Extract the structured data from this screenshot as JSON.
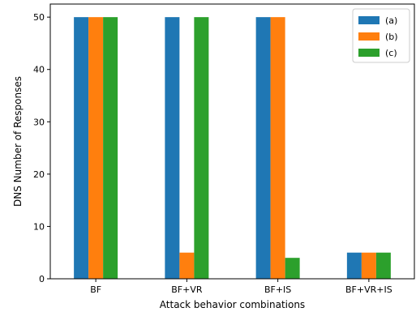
{
  "chart_data": {
    "type": "bar",
    "title": "",
    "xlabel": "Attack behavior combinations",
    "ylabel": "DNS Number of Responses",
    "categories": [
      "BF",
      "BF+VR",
      "BF+IS",
      "BF+VR+IS"
    ],
    "series": [
      {
        "name": "(a)",
        "color": "#1f77b4",
        "values": [
          50,
          50,
          50,
          5
        ]
      },
      {
        "name": "(b)",
        "color": "#ff7f0e",
        "values": [
          50,
          5,
          50,
          5
        ]
      },
      {
        "name": "(c)",
        "color": "#2ca02c",
        "values": [
          50,
          50,
          4,
          5
        ]
      }
    ],
    "ylim": [
      0,
      52.5
    ],
    "yticks": [
      0,
      10,
      20,
      30,
      40,
      50
    ],
    "legend_position": "top-right",
    "grid": false
  }
}
